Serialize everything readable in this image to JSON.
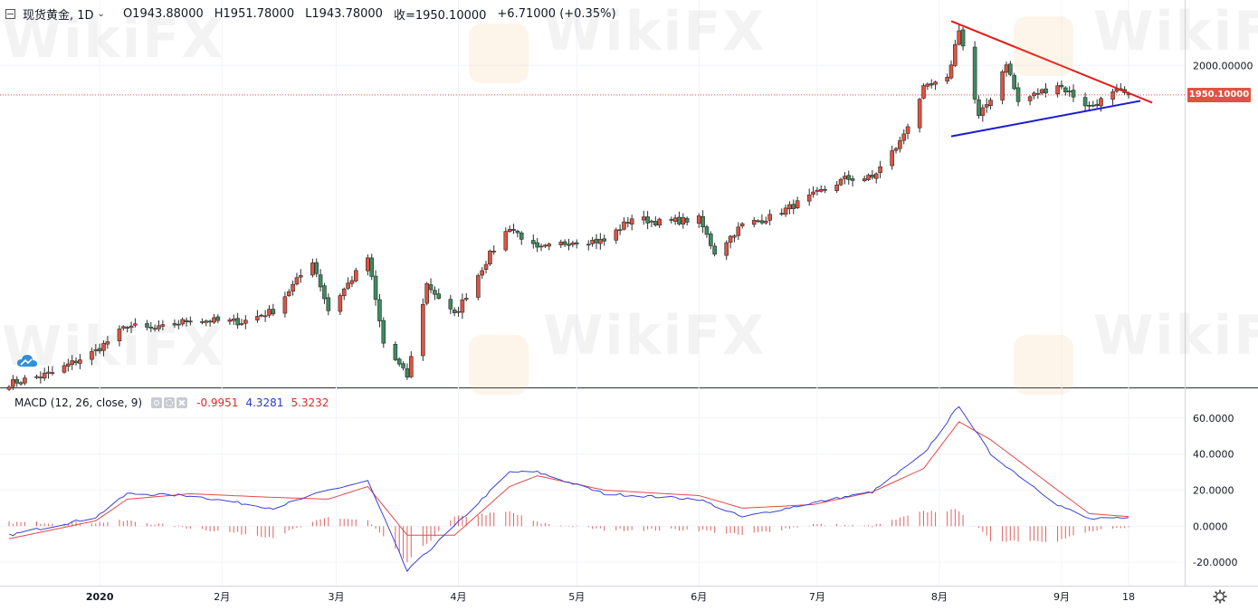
{
  "header": {
    "symbol": "现货黄金, 1D",
    "open": "O1943.88000",
    "high": "H1951.78000",
    "low": "L1943.78000",
    "close": "收=1950.10000",
    "change": "+6.71000 (+0.35%)"
  },
  "macd": {
    "title": "MACD (12, 26, close, 9)",
    "hist_value": "-0.9951",
    "macd_value": "4.3281",
    "signal_value": "5.3232"
  },
  "price_tag": "1950.10000",
  "watermark_text": "WikiFX",
  "colors": {
    "up": "#e15241",
    "down": "#3d8b5f",
    "macd_line": "#3b40d6",
    "signal_line": "#e44a4a",
    "hist": "#e06060",
    "resistance": "#e31b1b",
    "support": "#1a1ad6",
    "price_line": "#e15241"
  },
  "icons": [
    "hide-icon",
    "chevron-down-icon",
    "eye-icon",
    "gear-icon",
    "close-icon",
    "cloud-icon",
    "settings-icon"
  ],
  "chart_data": {
    "type": "candlestick",
    "price_axis": {
      "ylim": [
        1460,
        2080
      ],
      "tick_labels": [
        {
          "value": 2000,
          "label": "2000.00000"
        }
      ]
    },
    "macd_axis": {
      "ylim": [
        -29,
        72
      ],
      "tick_labels": [
        {
          "value": 60,
          "label": "60.0000"
        },
        {
          "value": 40,
          "label": "40.0000"
        },
        {
          "value": 20,
          "label": "20.0000"
        },
        {
          "value": 0,
          "label": "0.0000"
        },
        {
          "value": -20,
          "label": "-20.0000"
        }
      ]
    },
    "x_axis": {
      "range": [
        "2019-12-09",
        "2020-09-29"
      ],
      "ticks": [
        {
          "date": "2020-01-01",
          "label": "2020"
        },
        {
          "date": "2020-02-01",
          "label": "2月"
        },
        {
          "date": "2020-03-01",
          "label": "3月"
        },
        {
          "date": "2020-04-01",
          "label": "4月"
        },
        {
          "date": "2020-05-01",
          "label": "5月"
        },
        {
          "date": "2020-06-01",
          "label": "6月"
        },
        {
          "date": "2020-07-01",
          "label": "7月"
        },
        {
          "date": "2020-08-01",
          "label": "8月"
        },
        {
          "date": "2020-09-01",
          "label": "9月"
        },
        {
          "date": "2020-09-18",
          "label": "18"
        }
      ]
    },
    "trendlines": [
      {
        "name": "resistance",
        "from": [
          "2020-08-04",
          2075
        ],
        "to": [
          "2020-09-24",
          1937
        ]
      },
      {
        "name": "support",
        "from": [
          "2020-08-04",
          1880
        ],
        "to": [
          "2020-09-21",
          1940
        ]
      }
    ],
    "current_price": 1950.1,
    "close_anchors": [
      [
        "2019-12-09",
        1462
      ],
      [
        "2019-12-20",
        1480
      ],
      [
        "2019-12-31",
        1517
      ],
      [
        "2020-01-08",
        1560
      ],
      [
        "2020-01-15",
        1553
      ],
      [
        "2020-01-24",
        1570
      ],
      [
        "2020-02-06",
        1566
      ],
      [
        "2020-02-14",
        1585
      ],
      [
        "2020-02-24",
        1670
      ],
      [
        "2020-02-28",
        1586
      ],
      [
        "2020-03-09",
        1675
      ],
      [
        "2020-03-13",
        1530
      ],
      [
        "2020-03-19",
        1474
      ],
      [
        "2020-03-24",
        1630
      ],
      [
        "2020-03-31",
        1577
      ],
      [
        "2020-04-09",
        1680
      ],
      [
        "2020-04-14",
        1727
      ],
      [
        "2020-04-21",
        1688
      ],
      [
        "2020-04-30",
        1703
      ],
      [
        "2020-05-08",
        1703
      ],
      [
        "2020-05-15",
        1742
      ],
      [
        "2020-05-22",
        1735
      ],
      [
        "2020-06-01",
        1740
      ],
      [
        "2020-06-05",
        1684
      ],
      [
        "2020-06-12",
        1730
      ],
      [
        "2020-06-19",
        1743
      ],
      [
        "2020-06-30",
        1780
      ],
      [
        "2020-07-08",
        1808
      ],
      [
        "2020-07-15",
        1810
      ],
      [
        "2020-07-22",
        1870
      ],
      [
        "2020-07-28",
        1960
      ],
      [
        "2020-08-03",
        1975
      ],
      [
        "2020-08-06",
        2063
      ],
      [
        "2020-08-11",
        1912
      ],
      [
        "2020-08-14",
        1945
      ],
      [
        "2020-08-18",
        2005
      ],
      [
        "2020-08-21",
        1938
      ],
      [
        "2020-08-31",
        1968
      ],
      [
        "2020-09-08",
        1930
      ],
      [
        "2020-09-15",
        1955
      ],
      [
        "2020-09-18",
        1950.1
      ]
    ],
    "macd_anchors": [
      [
        "2019-12-09",
        -5
      ],
      [
        "2019-12-31",
        5
      ],
      [
        "2020-01-08",
        18
      ],
      [
        "2020-01-24",
        17
      ],
      [
        "2020-02-14",
        10
      ],
      [
        "2020-02-28",
        20
      ],
      [
        "2020-03-09",
        25
      ],
      [
        "2020-03-19",
        -25
      ],
      [
        "2020-03-31",
        0
      ],
      [
        "2020-04-14",
        30
      ],
      [
        "2020-04-21",
        30
      ],
      [
        "2020-05-08",
        18
      ],
      [
        "2020-06-01",
        15
      ],
      [
        "2020-06-12",
        5
      ],
      [
        "2020-06-30",
        13
      ],
      [
        "2020-07-15",
        19
      ],
      [
        "2020-07-28",
        40
      ],
      [
        "2020-08-06",
        67
      ],
      [
        "2020-08-14",
        40
      ],
      [
        "2020-08-31",
        12
      ],
      [
        "2020-09-08",
        4
      ],
      [
        "2020-09-18",
        4.33
      ]
    ],
    "signal_anchors": [
      [
        "2019-12-09",
        -7
      ],
      [
        "2019-12-31",
        3
      ],
      [
        "2020-01-08",
        15
      ],
      [
        "2020-01-24",
        18
      ],
      [
        "2020-02-14",
        16
      ],
      [
        "2020-02-28",
        15
      ],
      [
        "2020-03-09",
        22
      ],
      [
        "2020-03-19",
        -5
      ],
      [
        "2020-03-31",
        -5
      ],
      [
        "2020-04-14",
        22
      ],
      [
        "2020-04-21",
        28
      ],
      [
        "2020-05-08",
        20
      ],
      [
        "2020-06-01",
        17
      ],
      [
        "2020-06-12",
        10
      ],
      [
        "2020-06-30",
        12
      ],
      [
        "2020-07-15",
        19
      ],
      [
        "2020-07-28",
        32
      ],
      [
        "2020-08-06",
        58
      ],
      [
        "2020-08-14",
        48
      ],
      [
        "2020-08-31",
        20
      ],
      [
        "2020-09-08",
        7
      ],
      [
        "2020-09-18",
        5.32
      ]
    ]
  }
}
